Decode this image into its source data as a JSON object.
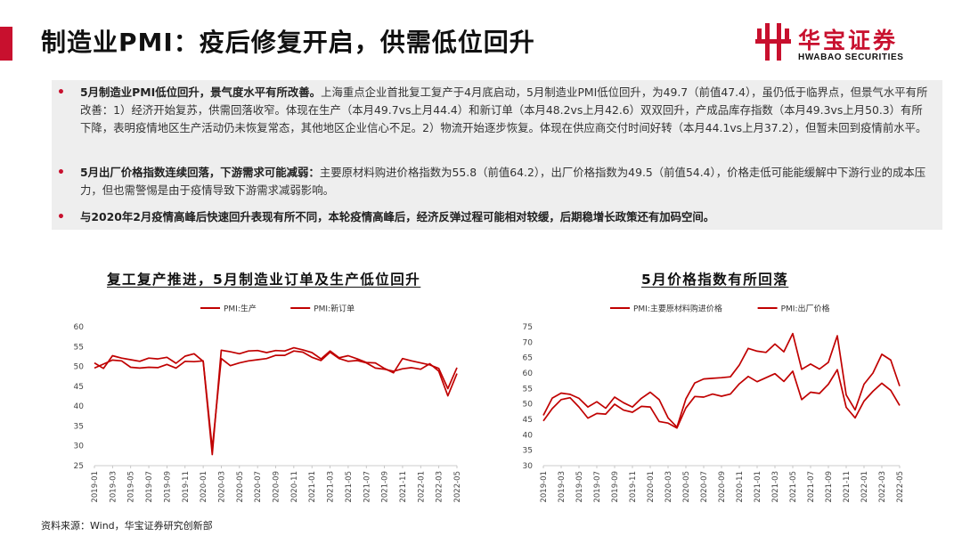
{
  "header": {
    "title": "制造业PMI：疫后修复开启，供需低位回升",
    "logo_cn": "华宝证券",
    "logo_en": "HWABAO SECURITIES"
  },
  "bullets": [
    {
      "bold": "5月制造业PMI低位回升，景气度水平有所改善。",
      "text": "上海重点企业首批复工复产于4月底启动，5月制造业PMI低位回升，为49.7（前值47.4），虽仍低于临界点，但景气水平有所改善：1）经济开始复苏，供需回落收窄。体现在生产（本月49.7vs上月44.4）和新订单（本月48.2vs上月42.6）双双回升，产成品库存指数（本月49.3vs上月50.3）有所下降，表明疫情地区生产活动仍未恢复常态，其他地区企业信心不足。2）物流开始逐步恢复。体现在供应商交付时间好转（本月44.1vs上月37.2），但暂未回到疫情前水平。"
    },
    {
      "bold": "5月出厂价格指数连续回落，下游需求可能减弱：",
      "text": "主要原材料购进价格指数为55.8（前值64.2），出厂价格指数为49.5（前值54.4），价格走低可能能缓解中下游行业的成本压力，但也需警惕是由于疫情导致下游需求减弱影响。"
    },
    {
      "bold": "与2020年2月疫情高峰后快速回升表现有所不同，本轮疫情高峰后，经济反弹过程可能相对较缓，后期稳增长政策还有加码空间。",
      "text": ""
    }
  ],
  "chart_titles": [
    "复工复产推进，5月制造业订单及生产低位回升",
    "5月价格指数有所回落"
  ],
  "footer": "资料来源：Wind，华宝证券研究创新部",
  "colors": {
    "primary": "#c8102e",
    "line": "#c00000"
  },
  "chart_data": [
    {
      "type": "line",
      "title": "复工复产推进，5月制造业订单及生产低位回升",
      "ylim": [
        25,
        60
      ],
      "yticks": [
        25,
        30,
        35,
        40,
        45,
        50,
        55,
        60
      ],
      "x": [
        "2019-01",
        "2019-02",
        "2019-03",
        "2019-04",
        "2019-05",
        "2019-06",
        "2019-07",
        "2019-08",
        "2019-09",
        "2019-10",
        "2019-11",
        "2019-12",
        "2020-01",
        "2020-02",
        "2020-03",
        "2020-04",
        "2020-05",
        "2020-06",
        "2020-07",
        "2020-08",
        "2020-09",
        "2020-10",
        "2020-11",
        "2020-12",
        "2021-01",
        "2021-02",
        "2021-03",
        "2021-04",
        "2021-05",
        "2021-06",
        "2021-07",
        "2021-08",
        "2021-09",
        "2021-10",
        "2021-11",
        "2021-12",
        "2022-01",
        "2022-02",
        "2022-03",
        "2022-04",
        "2022-05"
      ],
      "xtick_labels": [
        "2019-01",
        "2019-03",
        "2019-05",
        "2019-07",
        "2019-09",
        "2019-11",
        "2020-01",
        "2020-03",
        "2020-05",
        "2020-07",
        "2020-09",
        "2020-11",
        "2021-01",
        "2021-03",
        "2021-05",
        "2021-07",
        "2021-09",
        "2021-11",
        "2022-01",
        "2022-03",
        "2022-05"
      ],
      "legend_position": "top-center",
      "series": [
        {
          "name": "PMI:生产",
          "values": [
            50.9,
            49.5,
            52.7,
            52.1,
            51.7,
            51.3,
            52.1,
            51.9,
            52.3,
            50.8,
            52.6,
            53.2,
            51.3,
            27.8,
            54.1,
            53.7,
            53.2,
            53.9,
            54.0,
            53.5,
            54.0,
            53.9,
            54.7,
            54.2,
            53.5,
            51.9,
            53.9,
            52.2,
            52.7,
            51.9,
            51.0,
            50.9,
            49.5,
            48.4,
            52.0,
            51.4,
            50.9,
            50.4,
            49.5,
            44.4,
            49.7
          ]
        },
        {
          "name": "PMI:新订单",
          "values": [
            49.6,
            50.6,
            51.6,
            51.4,
            49.8,
            49.6,
            49.8,
            49.7,
            50.5,
            49.6,
            51.3,
            51.2,
            51.4,
            29.3,
            52.0,
            50.2,
            50.9,
            51.4,
            51.7,
            52.0,
            52.8,
            52.8,
            53.9,
            53.6,
            52.3,
            51.5,
            53.6,
            52.0,
            51.3,
            51.5,
            50.9,
            49.6,
            49.3,
            48.8,
            49.4,
            49.7,
            49.3,
            50.7,
            48.8,
            42.6,
            48.2
          ]
        }
      ]
    },
    {
      "type": "line",
      "title": "5月价格指数有所回落",
      "ylim": [
        30,
        75
      ],
      "yticks": [
        30,
        35,
        40,
        45,
        50,
        55,
        60,
        65,
        70,
        75
      ],
      "x": [
        "2019-01",
        "2019-02",
        "2019-03",
        "2019-04",
        "2019-05",
        "2019-06",
        "2019-07",
        "2019-08",
        "2019-09",
        "2019-10",
        "2019-11",
        "2019-12",
        "2020-01",
        "2020-02",
        "2020-03",
        "2020-04",
        "2020-05",
        "2020-06",
        "2020-07",
        "2020-08",
        "2020-09",
        "2020-10",
        "2020-11",
        "2020-12",
        "2021-01",
        "2021-02",
        "2021-03",
        "2021-04",
        "2021-05",
        "2021-06",
        "2021-07",
        "2021-08",
        "2021-09",
        "2021-10",
        "2021-11",
        "2021-12",
        "2022-01",
        "2022-02",
        "2022-03",
        "2022-04",
        "2022-05"
      ],
      "xtick_labels": [
        "2019-01",
        "2019-03",
        "2019-05",
        "2019-07",
        "2019-09",
        "2019-11",
        "2020-01",
        "2020-03",
        "2020-05",
        "2020-07",
        "2020-09",
        "2020-11",
        "2021-01",
        "2021-03",
        "2021-05",
        "2021-07",
        "2021-09",
        "2021-11",
        "2022-01",
        "2022-03",
        "2022-05"
      ],
      "legend_position": "top-center",
      "series": [
        {
          "name": "PMI:主要原材料购进价格",
          "values": [
            46.3,
            51.9,
            53.5,
            53.1,
            51.8,
            49.0,
            50.7,
            48.6,
            52.2,
            50.4,
            49.0,
            51.8,
            53.8,
            51.4,
            45.5,
            42.5,
            51.6,
            56.8,
            58.1,
            58.3,
            58.5,
            58.8,
            62.6,
            68.0,
            67.1,
            66.7,
            69.4,
            66.9,
            72.8,
            61.2,
            62.9,
            61.3,
            63.5,
            72.1,
            52.9,
            48.1,
            56.4,
            60.0,
            66.1,
            64.2,
            55.8
          ]
        },
        {
          "name": "PMI:出厂价格",
          "values": [
            44.5,
            48.5,
            51.4,
            52.0,
            49.0,
            45.4,
            46.9,
            46.7,
            49.9,
            48.0,
            47.3,
            49.2,
            49.0,
            44.3,
            43.8,
            42.2,
            48.7,
            52.4,
            52.2,
            53.2,
            52.5,
            53.2,
            56.5,
            58.9,
            57.2,
            58.5,
            59.8,
            57.3,
            60.6,
            51.4,
            53.8,
            53.4,
            56.4,
            61.1,
            48.9,
            45.5,
            50.9,
            54.1,
            56.7,
            54.4,
            49.5
          ]
        }
      ]
    }
  ]
}
